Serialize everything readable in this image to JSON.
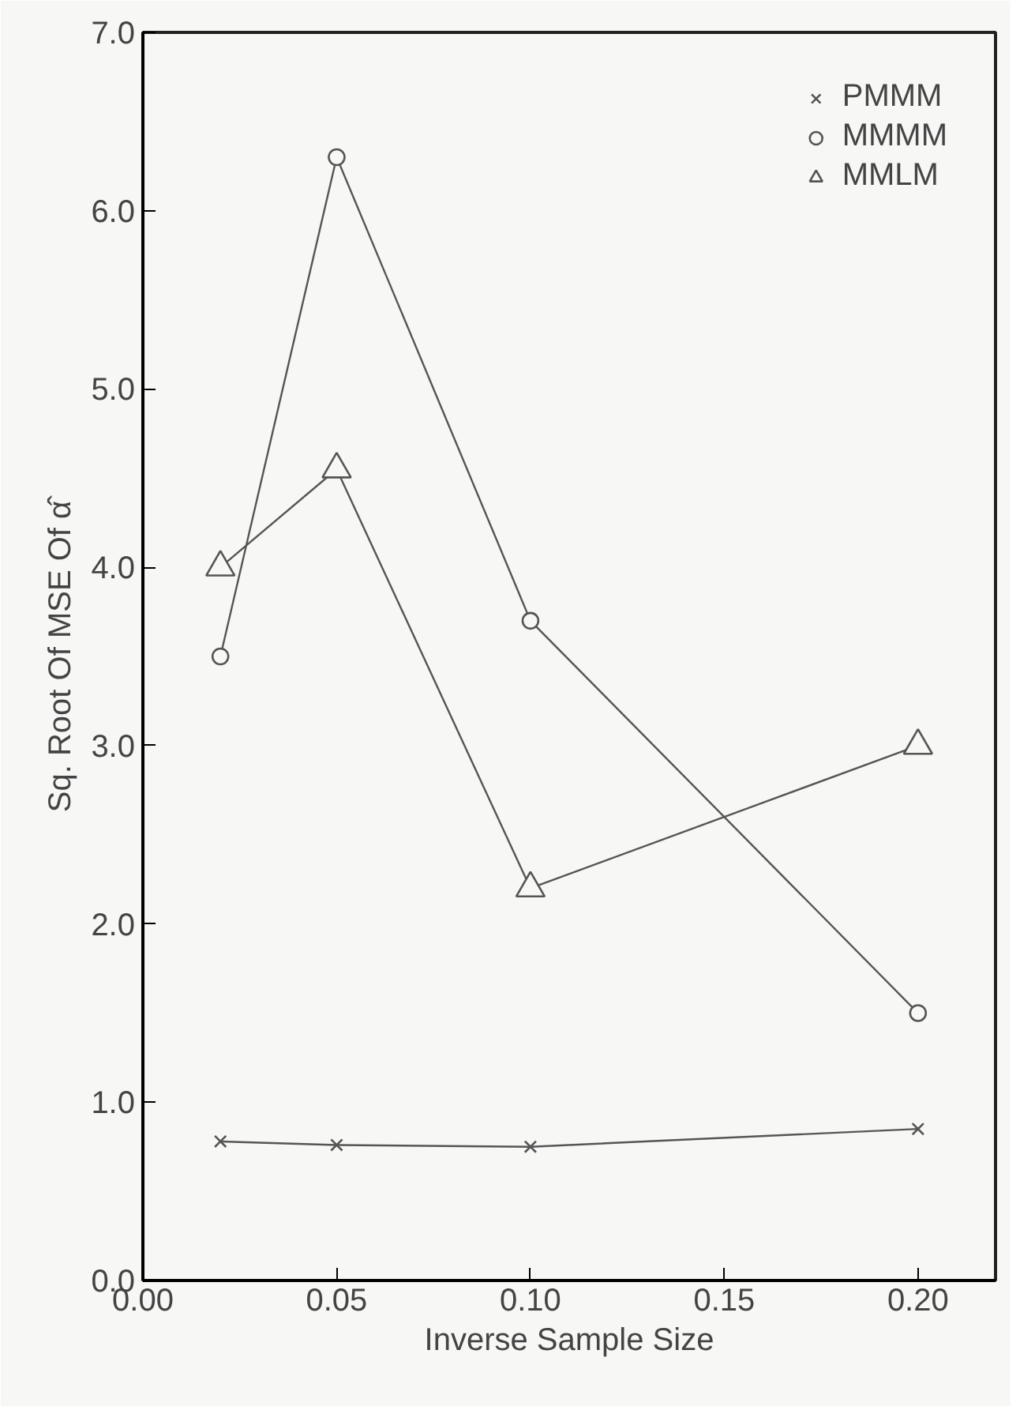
{
  "chart_data": {
    "type": "line",
    "xlabel": "Inverse Sample Size",
    "ylabel": "Sq. Root Of MSE Of α̂",
    "x": [
      0.02,
      0.05,
      0.1,
      0.2
    ],
    "xlim": [
      0,
      0.22
    ],
    "xticks": [
      {
        "value": 0,
        "label": "0.00"
      },
      {
        "value": 0.05,
        "label": "0.05"
      },
      {
        "value": 0.1,
        "label": "0.10"
      },
      {
        "value": 0.15,
        "label": "0.15"
      },
      {
        "value": 0.2,
        "label": "0.20"
      }
    ],
    "ylim": [
      0,
      7
    ],
    "yticks": [
      {
        "value": 0,
        "label": "0.0"
      },
      {
        "value": 1,
        "label": "1.0"
      },
      {
        "value": 2,
        "label": "2.0"
      },
      {
        "value": 3,
        "label": "3.0"
      },
      {
        "value": 4,
        "label": "4.0"
      },
      {
        "value": 5,
        "label": "5.0"
      },
      {
        "value": 6,
        "label": "6.0"
      },
      {
        "value": 7,
        "label": "7.0"
      }
    ],
    "series": [
      {
        "name": "PMMM",
        "color": "#555555",
        "marker": "cross",
        "values": [
          0.78,
          0.76,
          0.75,
          0.85
        ]
      },
      {
        "name": "MMMM",
        "color": "#555555",
        "marker": "circle",
        "values": [
          3.5,
          6.3,
          3.7,
          1.5
        ]
      },
      {
        "name": "MMLM",
        "color": "#555555",
        "marker": "triangle",
        "values": [
          4.0,
          4.55,
          2.2,
          3.0
        ]
      }
    ],
    "legend": "top right",
    "grid": false,
    "line_style": "solid"
  }
}
